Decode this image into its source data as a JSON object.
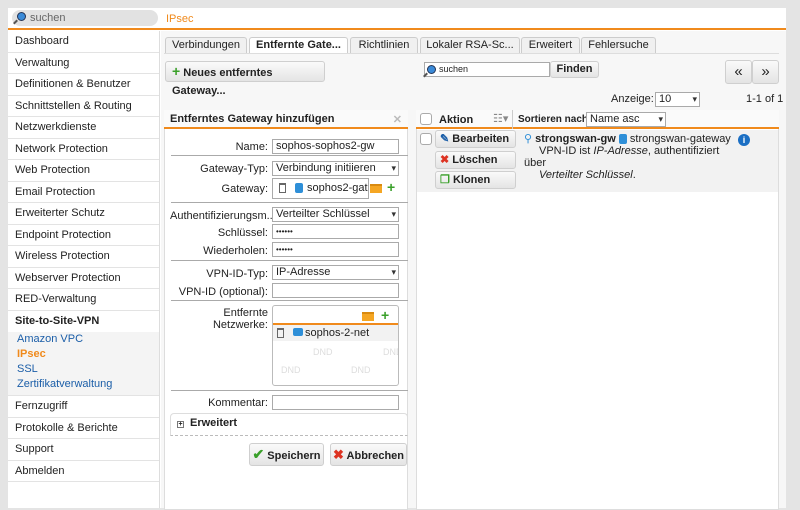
{
  "topbar": {
    "search_placeholder": "suchen",
    "breadcrumb": "IPsec"
  },
  "sidebar": {
    "items": [
      "Dashboard",
      "Verwaltung",
      "Definitionen & Benutzer",
      "Schnittstellen & Routing",
      "Netzwerkdienste",
      "Network Protection",
      "Web Protection",
      "Email Protection",
      "Erweiterter Schutz",
      "Endpoint Protection",
      "Wireless Protection",
      "Webserver Protection",
      "RED-Verwaltung",
      "Site-to-Site-VPN"
    ],
    "subitems": [
      "Amazon VPC",
      "IPsec",
      "SSL",
      "Zertifikatverwaltung"
    ],
    "bottom_items": [
      "Fernzugriff",
      "Protokolle & Berichte",
      "Support",
      "Abmelden"
    ]
  },
  "tabs": [
    "Verbindungen",
    "Entfernte Gate...",
    "Richtlinien",
    "Lokaler RSA-Sc...",
    "Erweitert",
    "Fehlersuche"
  ],
  "toolbar": {
    "new_button": "Neues entferntes Gateway...",
    "search_placeholder": "suchen",
    "find_button": "Finden",
    "prev": "«",
    "next": "»",
    "display_label": "Anzeige:",
    "display_value": "10",
    "range": "1-1 of 1"
  },
  "form": {
    "title": "Entferntes Gateway hinzufügen",
    "close": "✕",
    "name_label": "Name:",
    "name_value": "sophos-sophos2-gw",
    "gwtype_label": "Gateway-Typ:",
    "gwtype_value": "Verbindung initiieren",
    "gateway_label": "Gateway:",
    "gateway_value": "sophos2-gate",
    "auth_label": "Authentifizierungsm...",
    "auth_value": "Verteilter Schlüssel",
    "key_label": "Schlüssel:",
    "key_value": "••••••",
    "repeat_label": "Wiederholen:",
    "repeat_value": "••••••",
    "vpnidtype_label": "VPN-ID-Typ:",
    "vpnidtype_value": "IP-Adresse",
    "vpnid_label": "VPN-ID (optional):",
    "vpnid_value": "",
    "networks_label": "Entfernte Netzwerke:",
    "network_item": "sophos-2-net",
    "dnd": "DND",
    "comment_label": "Kommentar:",
    "comment_value": "",
    "advanced": "Erweitert",
    "save": "Speichern",
    "cancel": "Abbrechen"
  },
  "list": {
    "action_header": "Aktion",
    "sort_label": "Sortieren nach:",
    "sort_value": "Name asc",
    "row": {
      "edit": "Bearbeiten",
      "delete": "Löschen",
      "clone": "Klonen",
      "name": "strongswan-gw",
      "gateway": "strongswan-gateway",
      "desc_pre": "VPN-ID ist ",
      "desc_em1": "IP-Adresse",
      "desc_mid": ", authentifiziert über",
      "desc_em2": "Verteilter Schlüssel",
      "desc_end": "."
    }
  },
  "colors": {
    "accent": "#f08a1c",
    "link": "#1b5ea8"
  }
}
